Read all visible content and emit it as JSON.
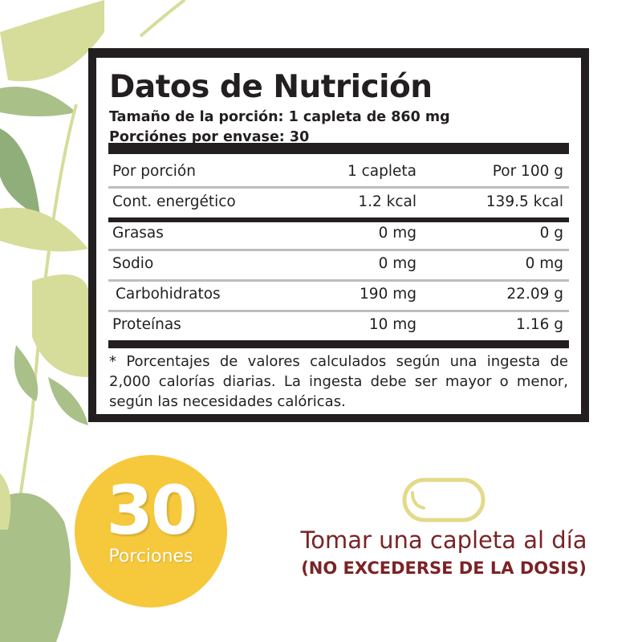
{
  "label": {
    "title": "Datos de Nutrición",
    "serving_size": "Tamaño de la porción: 1 capleta de 860 mg",
    "servings_per_container": "Porciónes por envase: 30",
    "header": {
      "name": "Por porción",
      "per_serving": "1 capleta",
      "per_100g": "Por 100 g"
    },
    "rows": [
      {
        "name": "Cont. energético",
        "per_serving": "1.2 kcal",
        "per_100g": "139.5 kcal"
      },
      {
        "name": "Grasas",
        "per_serving": "0 mg",
        "per_100g": "0 g"
      },
      {
        "name": "Sodio",
        "per_serving": "0 mg",
        "per_100g": "0 mg"
      },
      {
        "name": "Carbohidratos",
        "per_serving": "190 mg",
        "per_100g": "22.09 g"
      },
      {
        "name": "Proteínas",
        "per_serving": "10 mg",
        "per_100g": "1.16 g"
      }
    ],
    "footnote": "* Porcentajes de valores calculados según una ingesta de 2,000 calorías diarias. La ingesta debe ser mayor o menor, según las necesidades calóricas."
  },
  "badge": {
    "number": "30",
    "label": "Porciones",
    "color": "#f6c83b"
  },
  "dosage": {
    "icon": "capsule-icon",
    "line1": "Tomar una capleta al día",
    "line2": "(NO EXCEDERSE DE LA DOSIS)",
    "color": "#7a2326"
  },
  "colors": {
    "leaf_light": "#d6dc9a",
    "leaf_mid": "#a9c089",
    "leaf_dark": "#8fae7a"
  }
}
